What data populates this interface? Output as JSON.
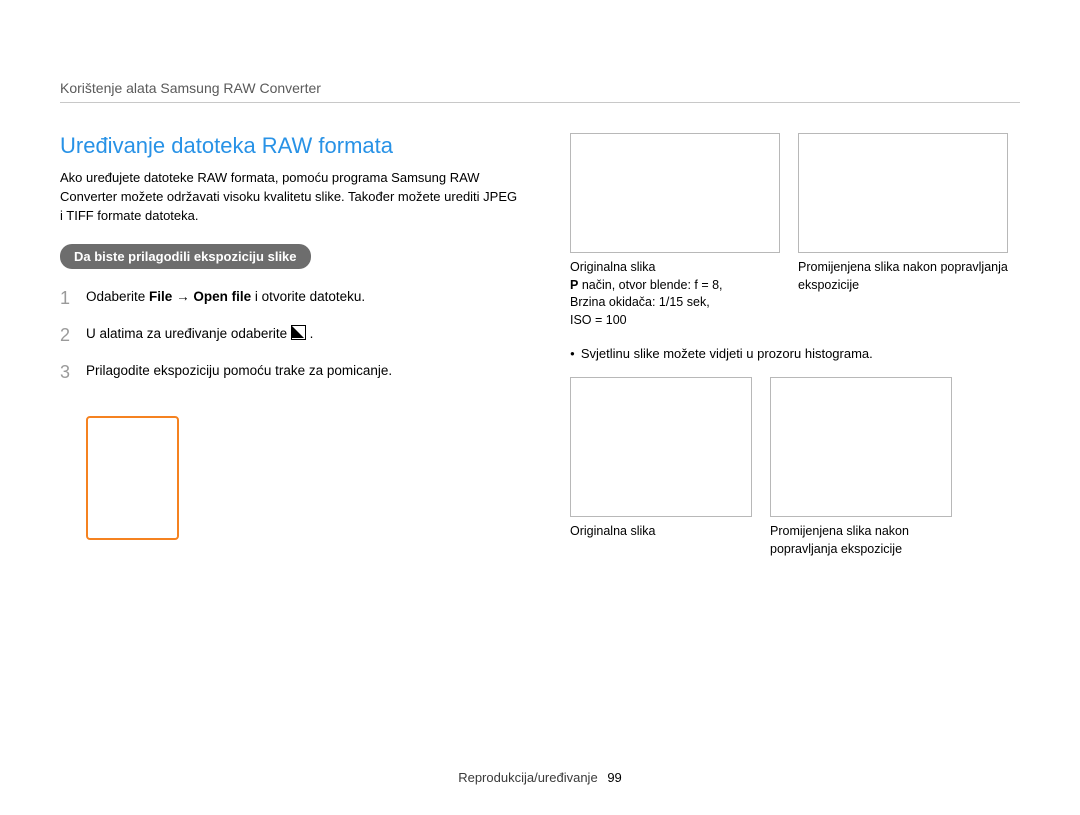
{
  "header": {
    "breadcrumb": "Korištenje alata Samsung RAW Converter"
  },
  "main": {
    "title": "Uređivanje datoteka RAW formata",
    "intro": "Ako uređujete datoteke RAW formata, pomoću programa Samsung RAW Converter možete održavati visoku kvalitetu slike. Također možete urediti JPEG i TIFF formate datoteka.",
    "pill": "Da biste prilagodili ekspoziciju slike",
    "steps": [
      {
        "num": "1",
        "prefix": "Odaberite ",
        "bold1": "File",
        "arrow": " → ",
        "bold2": "Open ﬁle",
        "suffix": " i otvorite datoteku."
      },
      {
        "num": "2",
        "text_before": "U alatima za uređivanje odaberite ",
        "text_after": " ."
      },
      {
        "num": "3",
        "text": "Prilagodite ekspoziciju pomoću trake za pomicanje."
      }
    ],
    "orange_box_color": "#f58220"
  },
  "right": {
    "row1": {
      "left_caption_line1": "Originalna slika",
      "left_caption_line2": " način, otvor blende: f = 8,",
      "left_caption_line3": "Brzina okidača: 1/15 sek,",
      "left_caption_line4": "ISO = 100",
      "p_symbol": "P",
      "right_caption": "Promijenjena slika nakon popravljanja ekspozicije"
    },
    "bullet": "Svjetlinu slike možete vidjeti u prozoru histograma.",
    "row2": {
      "left_caption": "Originalna slika",
      "right_caption": "Promijenjena slika nakon popravljanja ekspozicije"
    }
  },
  "footer": {
    "label": "Reprodukcija/uređivanje",
    "page": "99"
  },
  "colors": {
    "accent_blue": "#2892e6",
    "pill_bg": "#6d6d6d",
    "border_gray": "#b8b8b8",
    "orange": "#f58220"
  }
}
